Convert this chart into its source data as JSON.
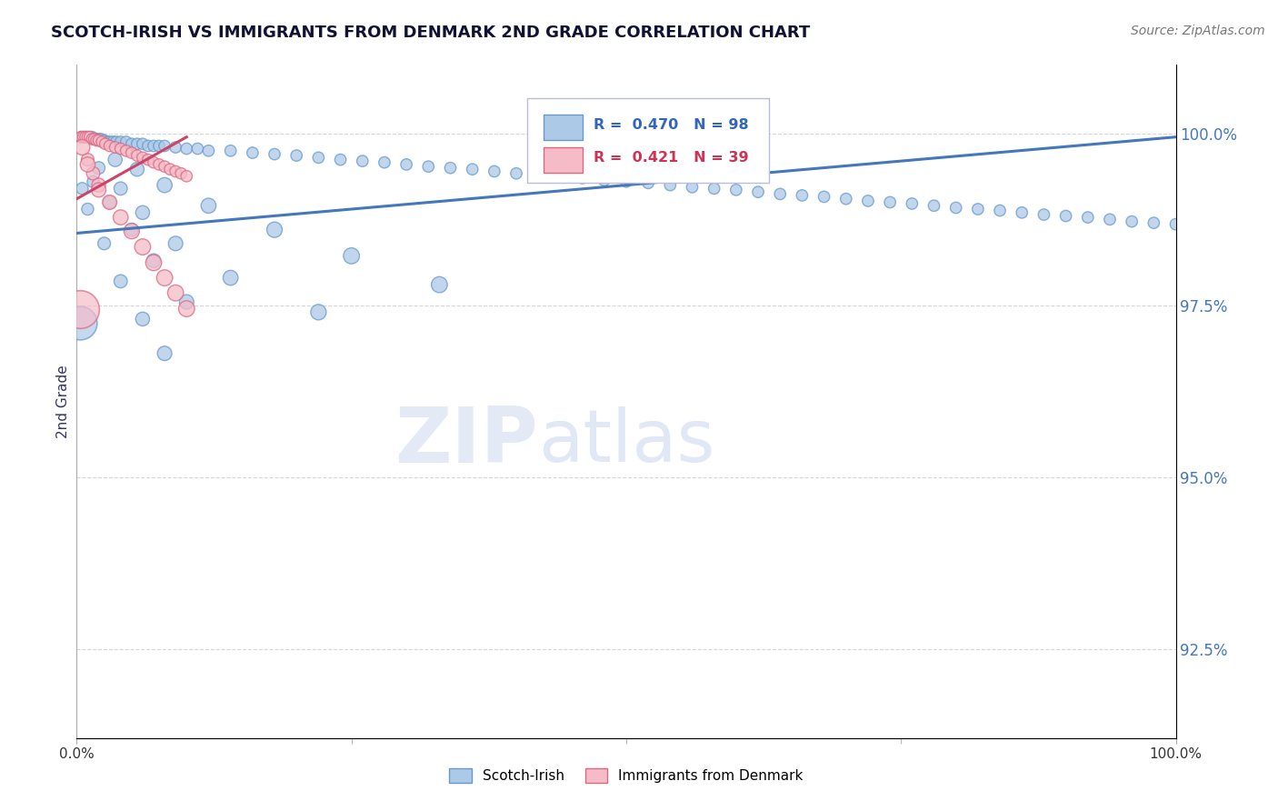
{
  "title": "SCOTCH-IRISH VS IMMIGRANTS FROM DENMARK 2ND GRADE CORRELATION CHART",
  "source": "Source: ZipAtlas.com",
  "ylabel": "2nd Grade",
  "yticks": [
    92.5,
    95.0,
    97.5,
    100.0
  ],
  "ytick_labels": [
    "92.5%",
    "95.0%",
    "97.5%",
    "100.0%"
  ],
  "xmin": 0.0,
  "xmax": 100.0,
  "ymin": 91.2,
  "ymax": 101.0,
  "blue_R": 0.47,
  "blue_N": 98,
  "pink_R": 0.421,
  "pink_N": 39,
  "blue_color": "#adc9e8",
  "blue_edge": "#6699cc",
  "pink_color": "#f5bcc8",
  "pink_edge": "#dd6680",
  "blue_line_color": "#4477bb",
  "pink_line_color": "#cc4466",
  "watermark_zip": "ZIP",
  "watermark_atlas": "atlas",
  "blue_line_x": [
    0.0,
    100.0
  ],
  "blue_line_y": [
    98.55,
    99.95
  ],
  "pink_line_x": [
    0.0,
    10.0
  ],
  "pink_line_y": [
    99.05,
    99.95
  ],
  "blue_scatter_x": [
    0.4,
    0.6,
    0.8,
    1.0,
    1.2,
    1.4,
    1.6,
    1.8,
    2.0,
    2.2,
    2.5,
    2.8,
    3.0,
    3.3,
    3.6,
    4.0,
    4.5,
    5.0,
    5.5,
    6.0,
    6.5,
    7.0,
    7.5,
    8.0,
    9.0,
    10.0,
    11.0,
    12.0,
    14.0,
    16.0,
    18.0,
    20.0,
    22.0,
    24.0,
    26.0,
    28.0,
    30.0,
    32.0,
    34.0,
    36.0,
    38.0,
    40.0,
    42.0,
    44.0,
    46.0,
    48.0,
    50.0,
    52.0,
    54.0,
    56.0,
    58.0,
    60.0,
    62.0,
    64.0,
    66.0,
    68.0,
    70.0,
    72.0,
    74.0,
    76.0,
    78.0,
    80.0,
    82.0,
    84.0,
    86.0,
    88.0,
    90.0,
    92.0,
    94.0,
    96.0,
    98.0,
    100.0,
    3.5,
    5.5,
    8.0,
    12.0,
    18.0,
    25.0,
    33.0,
    2.0,
    4.0,
    6.0,
    9.0,
    14.0,
    22.0,
    1.5,
    3.0,
    5.0,
    7.0,
    10.0,
    0.5,
    1.0,
    2.5,
    4.0,
    6.0,
    8.0
  ],
  "blue_scatter_y": [
    99.95,
    99.95,
    99.95,
    99.95,
    99.95,
    99.95,
    99.92,
    99.92,
    99.92,
    99.92,
    99.9,
    99.88,
    99.88,
    99.88,
    99.88,
    99.88,
    99.88,
    99.85,
    99.85,
    99.85,
    99.82,
    99.82,
    99.82,
    99.82,
    99.8,
    99.78,
    99.78,
    99.75,
    99.75,
    99.72,
    99.7,
    99.68,
    99.65,
    99.62,
    99.6,
    99.58,
    99.55,
    99.52,
    99.5,
    99.48,
    99.45,
    99.42,
    99.4,
    99.38,
    99.35,
    99.32,
    99.3,
    99.28,
    99.25,
    99.22,
    99.2,
    99.18,
    99.15,
    99.12,
    99.1,
    99.08,
    99.05,
    99.02,
    99.0,
    98.98,
    98.95,
    98.92,
    98.9,
    98.88,
    98.85,
    98.82,
    98.8,
    98.78,
    98.75,
    98.72,
    98.7,
    98.68,
    99.62,
    99.48,
    99.25,
    98.95,
    98.6,
    98.22,
    97.8,
    99.5,
    99.2,
    98.85,
    98.4,
    97.9,
    97.4,
    99.3,
    99.0,
    98.6,
    98.15,
    97.55,
    99.2,
    98.9,
    98.4,
    97.85,
    97.3,
    96.8
  ],
  "blue_scatter_sizes": [
    80,
    80,
    80,
    80,
    80,
    80,
    80,
    80,
    80,
    80,
    80,
    80,
    80,
    80,
    80,
    80,
    80,
    80,
    80,
    80,
    80,
    80,
    80,
    80,
    80,
    80,
    80,
    80,
    80,
    80,
    80,
    80,
    80,
    80,
    80,
    80,
    80,
    80,
    80,
    80,
    80,
    80,
    80,
    80,
    80,
    80,
    80,
    80,
    80,
    80,
    80,
    80,
    80,
    80,
    80,
    80,
    80,
    80,
    80,
    80,
    80,
    80,
    80,
    80,
    80,
    80,
    80,
    80,
    80,
    80,
    80,
    80,
    120,
    120,
    140,
    140,
    150,
    160,
    160,
    100,
    110,
    120,
    130,
    140,
    150,
    90,
    100,
    110,
    120,
    130,
    90,
    90,
    100,
    110,
    120,
    130
  ],
  "pink_scatter_x": [
    0.4,
    0.6,
    0.8,
    1.0,
    1.2,
    1.4,
    1.6,
    1.8,
    2.0,
    2.3,
    2.6,
    3.0,
    3.5,
    4.0,
    4.5,
    5.0,
    5.5,
    6.0,
    6.5,
    7.0,
    7.5,
    8.0,
    8.5,
    9.0,
    9.5,
    10.0,
    1.0,
    1.5,
    2.0,
    3.0,
    4.0,
    5.0,
    6.0,
    7.0,
    8.0,
    9.0,
    10.0,
    0.5,
    1.0,
    2.0
  ],
  "pink_scatter_y": [
    99.95,
    99.95,
    99.95,
    99.95,
    99.95,
    99.92,
    99.92,
    99.9,
    99.9,
    99.88,
    99.85,
    99.82,
    99.8,
    99.78,
    99.75,
    99.72,
    99.68,
    99.65,
    99.62,
    99.58,
    99.55,
    99.52,
    99.48,
    99.45,
    99.42,
    99.38,
    99.62,
    99.42,
    99.25,
    99.0,
    98.78,
    98.58,
    98.35,
    98.12,
    97.9,
    97.68,
    97.45,
    99.8,
    99.55,
    99.18
  ],
  "pink_scatter_sizes": [
    80,
    80,
    80,
    80,
    80,
    80,
    80,
    80,
    80,
    80,
    80,
    80,
    80,
    80,
    80,
    80,
    80,
    80,
    80,
    80,
    80,
    80,
    80,
    80,
    80,
    80,
    100,
    110,
    120,
    130,
    140,
    150,
    160,
    160,
    160,
    160,
    160,
    150,
    140,
    130
  ],
  "large_pink_x": 0.3,
  "large_pink_y": 97.45,
  "large_pink_size": 900,
  "large_blue_x": 0.3,
  "large_blue_y": 97.25,
  "large_blue_size": 700
}
